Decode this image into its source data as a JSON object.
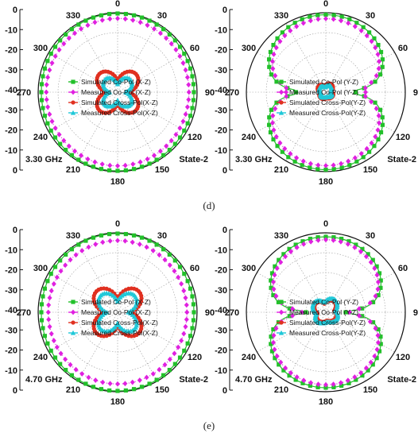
{
  "figure": {
    "row_labels": [
      "(d)",
      "(e)"
    ],
    "angle_ticks": [
      "0",
      "30",
      "60",
      "90",
      "120",
      "150",
      "180",
      "210",
      "240",
      "270",
      "300",
      "330"
    ],
    "db_ticks": [
      "0",
      "-10",
      "-20",
      "-30",
      "-40",
      "-30",
      "-20",
      "-10",
      "0"
    ]
  },
  "chart_data": [
    {
      "type": "polar",
      "frequency": "3.30 GHz",
      "state": "State-2",
      "plane": "X-Z",
      "rlim": [
        -40,
        0
      ],
      "angle_ticks_deg": [
        0,
        30,
        60,
        90,
        120,
        150,
        180,
        210,
        240,
        270,
        300,
        330
      ],
      "series": [
        {
          "name": "Simulated Co-Pol (X-Z)",
          "color": "#22c02a",
          "marker": "square",
          "model": "iso",
          "level": -1.0
        },
        {
          "name": "Measured Co-Pol (X-Z)",
          "color": "#e020e0",
          "marker": "diamond",
          "model": "iso",
          "level": -3.5
        },
        {
          "name": "Simulated Cross-Pol(X-Z)",
          "color": "#e03020",
          "marker": "circle",
          "model": "clover",
          "level": -27
        },
        {
          "name": "Measured Cross-Pol(X-Z)",
          "color": "#20c8d8",
          "marker": "triangle",
          "model": "clover",
          "level": -31
        }
      ]
    },
    {
      "type": "polar",
      "frequency": "3.30 GHz",
      "state": "State-2",
      "plane": "Y-Z",
      "rlim": [
        -40,
        0
      ],
      "angle_ticks_deg": [
        0,
        30,
        60,
        90,
        120,
        150,
        180,
        210,
        240,
        270,
        300,
        330
      ],
      "series": [
        {
          "name": "Simulated Co-Pol (Y-Z)",
          "color": "#22c02a",
          "marker": "square",
          "model": "eight",
          "level": -1.0,
          "null": -25
        },
        {
          "name": "Measured Co-Pol (Y-Z)",
          "color": "#e020e0",
          "marker": "diamond",
          "model": "eight",
          "level": -3.0,
          "null": -20
        },
        {
          "name": "Simulated Cross-Pol(Y-Z)",
          "color": "#e03020",
          "marker": "circle",
          "model": "blob",
          "level": -35
        },
        {
          "name": "Measured Cross-Pol(Y-Z)",
          "color": "#20c8d8",
          "marker": "triangle",
          "model": "blob",
          "level": -36
        }
      ]
    },
    {
      "type": "polar",
      "frequency": "4.70 GHz",
      "state": "State-2",
      "plane": "X-Z",
      "rlim": [
        -40,
        0
      ],
      "angle_ticks_deg": [
        0,
        30,
        60,
        90,
        120,
        150,
        180,
        210,
        240,
        270,
        300,
        330
      ],
      "series": [
        {
          "name": "Simulated Co-Pol (X-Z)",
          "color": "#22c02a",
          "marker": "square",
          "model": "iso",
          "level": -1.0
        },
        {
          "name": "Measured Co-Pol (X-Z)",
          "color": "#e020e0",
          "marker": "diamond",
          "model": "iso",
          "level": -4.5
        },
        {
          "name": "Simulated Cross-Pol(X-Z)",
          "color": "#e03020",
          "marker": "circle",
          "model": "clover",
          "level": -25
        },
        {
          "name": "Measured Cross-Pol(X-Z)",
          "color": "#20c8d8",
          "marker": "triangle",
          "model": "clover",
          "level": -28
        }
      ]
    },
    {
      "type": "polar",
      "frequency": "4.70 GHz",
      "state": "State-2",
      "plane": "Y-Z",
      "rlim": [
        -40,
        0
      ],
      "angle_ticks_deg": [
        0,
        30,
        60,
        90,
        120,
        150,
        180,
        210,
        240,
        270,
        300,
        330
      ],
      "series": [
        {
          "name": "Simulated Co-Pol (Y-Z)",
          "color": "#22c02a",
          "marker": "square",
          "model": "eight",
          "level": -2.0,
          "null": -30
        },
        {
          "name": "Measured Co-Pol (Y-Z)",
          "color": "#e020e0",
          "marker": "diamond",
          "model": "eight",
          "level": -3.5,
          "null": -28
        },
        {
          "name": "Simulated Cross-Pol(Y-Z)",
          "color": "#e03020",
          "marker": "circle",
          "model": "blob",
          "level": -33
        },
        {
          "name": "Measured Cross-Pol(Y-Z)",
          "color": "#20c8d8",
          "marker": "triangle",
          "model": "blob",
          "level": -32
        }
      ]
    }
  ]
}
